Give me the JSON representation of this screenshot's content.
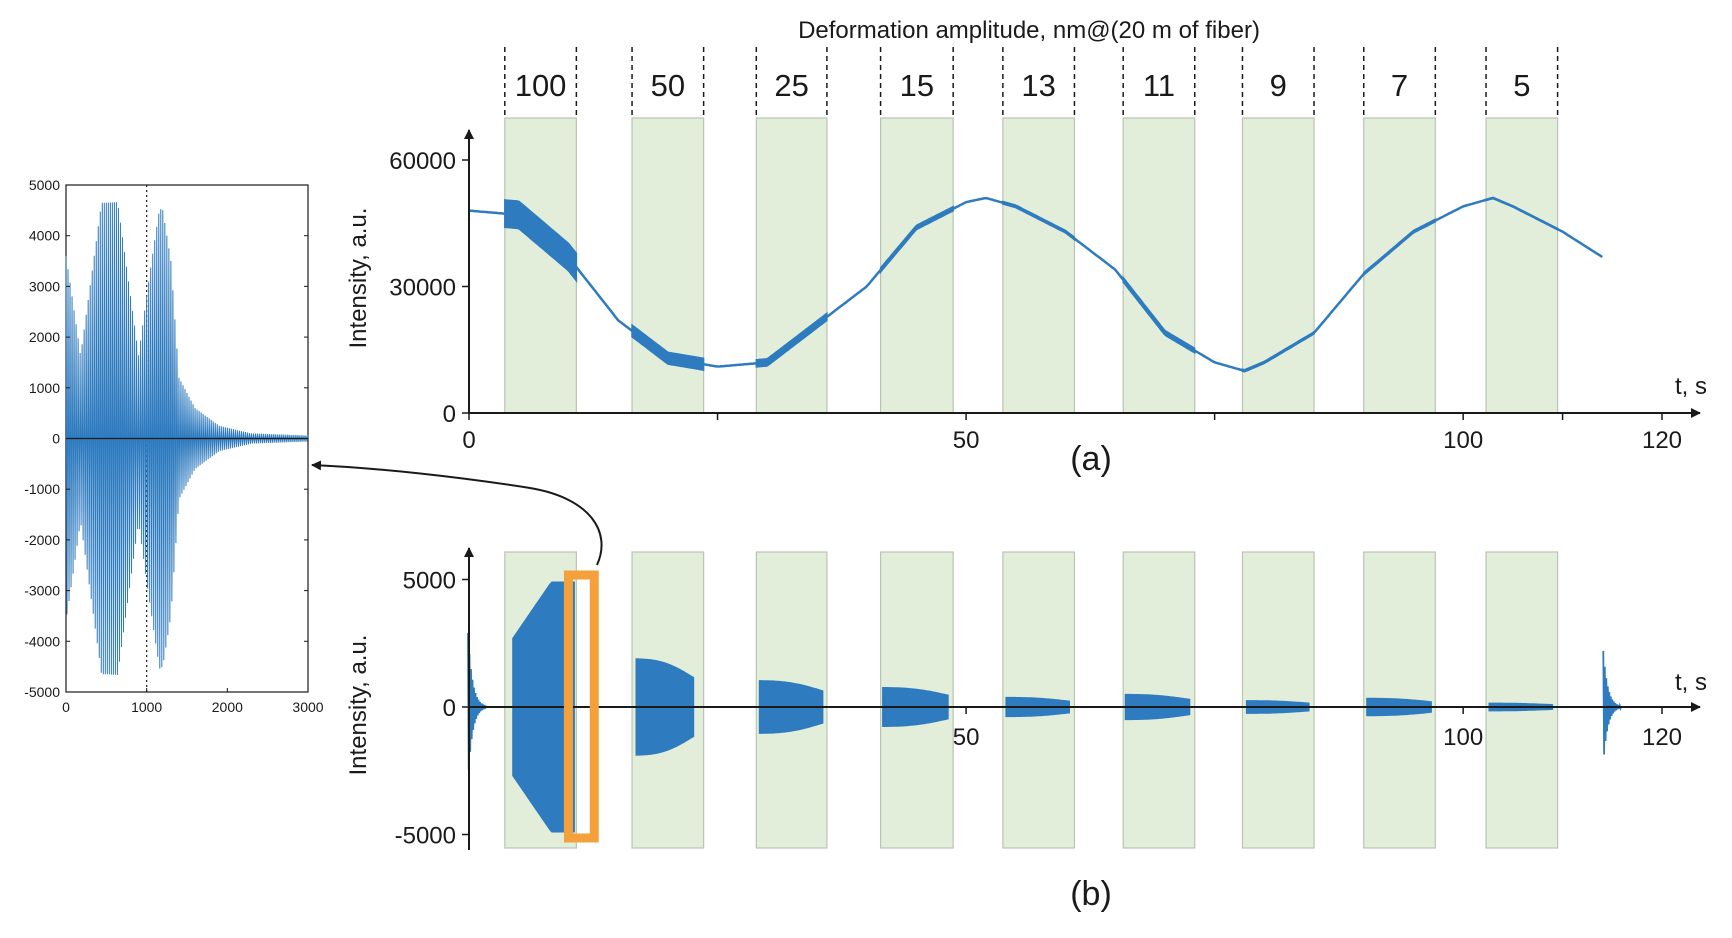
{
  "colors": {
    "signal": "#2f7bbf",
    "band_fill": "#e2eed9",
    "band_stroke": "#b9c4b3",
    "highlight": "#f4a13b",
    "axis": "#1a1a1a"
  },
  "chart_data": [
    {
      "id": "a",
      "type": "line",
      "title": "Deformation amplitude, nm@(20 m of fiber)",
      "panel_label": "(a)",
      "xlabel": "t, s",
      "ylabel": "Intensity, a.u.",
      "xlim": [
        0,
        120
      ],
      "ylim": [
        0,
        60000
      ],
      "xticks": [
        "0",
        "50",
        "100",
        "120"
      ],
      "yticks": [
        "0",
        "30000",
        "60000"
      ],
      "bands": [
        {
          "label": "100",
          "x0": 3.6,
          "x1": 10.8,
          "amp": 6500
        },
        {
          "label": "50",
          "x0": 16.4,
          "x1": 23.6,
          "amp": 2800
        },
        {
          "label": "25",
          "x0": 28.9,
          "x1": 36.0,
          "amp": 1700
        },
        {
          "label": "15",
          "x0": 41.4,
          "x1": 48.7,
          "amp": 1000
        },
        {
          "label": "13",
          "x0": 53.7,
          "x1": 60.9,
          "amp": 600
        },
        {
          "label": "11",
          "x0": 65.8,
          "x1": 73.0,
          "amp": 1100
        },
        {
          "label": "9",
          "x0": 77.8,
          "x1": 85.0,
          "amp": 500
        },
        {
          "label": "7",
          "x0": 90.0,
          "x1": 97.2,
          "amp": 600
        },
        {
          "label": "5",
          "x0": 102.3,
          "x1": 109.5,
          "amp": 300
        }
      ],
      "series": [
        {
          "x": [
            0,
            5,
            10,
            15,
            20,
            25,
            30,
            35,
            40,
            45,
            50,
            52,
            55,
            60,
            65,
            70,
            75,
            78,
            80,
            85,
            90,
            95,
            100,
            103,
            105,
            110,
            114
          ],
          "values": [
            48000,
            47000,
            37000,
            22000,
            13000,
            11000,
            12000,
            21000,
            30000,
            44000,
            50000,
            51000,
            49000,
            43000,
            34000,
            19000,
            12000,
            10000,
            12000,
            19000,
            33000,
            43000,
            49000,
            51000,
            49000,
            43000,
            37000
          ]
        }
      ]
    },
    {
      "id": "b",
      "type": "line",
      "panel_label": "(b)",
      "xlabel": "t, s",
      "ylabel": "Intensity, a.u.",
      "xlim": [
        0,
        120
      ],
      "ylim": [
        -5000,
        5000
      ],
      "xticks": [
        "50",
        "100",
        "120"
      ],
      "yticks": [
        "-5000",
        "0",
        "5000"
      ],
      "bursts": [
        {
          "x0": 4.4,
          "x1": 10.6,
          "amp": 4900
        },
        {
          "x0": 16.8,
          "x1": 22.6,
          "amp": 2100
        },
        {
          "x0": 29.2,
          "x1": 35.6,
          "amp": 1150
        },
        {
          "x0": 41.6,
          "x1": 48.2,
          "amp": 850
        },
        {
          "x0": 54.0,
          "x1": 60.4,
          "amp": 420
        },
        {
          "x0": 66.0,
          "x1": 72.5,
          "amp": 550
        },
        {
          "x0": 78.2,
          "x1": 84.5,
          "amp": 280
        },
        {
          "x0": 90.3,
          "x1": 96.8,
          "amp": 380
        },
        {
          "x0": 102.6,
          "x1": 109.0,
          "amp": 170
        }
      ],
      "spikes": [
        {
          "x": 0.3,
          "amp": 2900
        },
        {
          "x": 114.5,
          "amp": 2200
        }
      ],
      "highlight_window": {
        "x0": 10.0,
        "x1": 12.6
      }
    },
    {
      "id": "inset",
      "type": "line",
      "xlim": [
        0,
        3000
      ],
      "ylim": [
        -5000,
        5000
      ],
      "xticks": [
        "0",
        "1000",
        "2000",
        "3000"
      ],
      "yticks": [
        "5000",
        "4000",
        "3000",
        "2000",
        "1000",
        "0",
        "-1000",
        "-2000",
        "-3000",
        "-4000",
        "-5000"
      ],
      "envelope": [
        {
          "x": 0,
          "amp": 4500
        },
        {
          "x": 150,
          "amp": 4650
        },
        {
          "x": 500,
          "amp": 4650
        },
        {
          "x": 1000,
          "amp": 4700
        },
        {
          "x": 1200,
          "amp": 4500
        },
        {
          "x": 1300,
          "amp": 3500
        },
        {
          "x": 1400,
          "amp": 1200
        },
        {
          "x": 1600,
          "amp": 600
        },
        {
          "x": 1900,
          "amp": 250
        },
        {
          "x": 2300,
          "amp": 100
        },
        {
          "x": 3000,
          "amp": 60
        }
      ],
      "beat_nodes": [
        180,
        900
      ],
      "cycles": 120
    }
  ]
}
